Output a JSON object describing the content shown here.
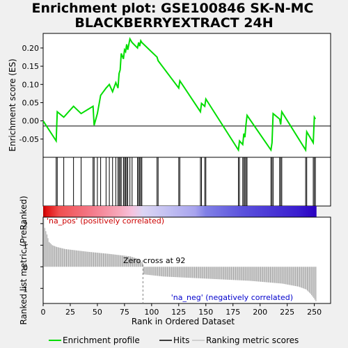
{
  "title_line1": "Enrichment plot: GSE100846 SK-N-MC",
  "title_line2": "BLACKBERRYEXTRACT 24H",
  "colors": {
    "enrichment_line": "#00dd00",
    "hits": "#000000",
    "ranking_bars": "#a0a0a0",
    "pos_label": "#cc0000",
    "neg_label": "#0000cc",
    "zero_cross_line": "#808080",
    "plot_bg": "#ffffff"
  },
  "chart_data": [
    {
      "type": "line",
      "name": "enrichment-profile",
      "ylabel": "Enrichment score (ES)",
      "xlim": [
        0,
        265
      ],
      "ylim": [
        -0.1,
        0.24
      ],
      "yticks": [
        -0.05,
        0.0,
        0.05,
        0.1,
        0.15,
        0.2
      ],
      "ytick_labels": [
        "-0.05",
        "0.00",
        "0.05",
        "0.10",
        "0.15",
        "0.20"
      ],
      "x": [
        0,
        12,
        13,
        19,
        28,
        35,
        46,
        47,
        50,
        53,
        58,
        61,
        64,
        67,
        69,
        70,
        71,
        72,
        74,
        75,
        76,
        77,
        78,
        80,
        82,
        87,
        88,
        89,
        90,
        91,
        105,
        106,
        125,
        126,
        145,
        146,
        149,
        150,
        180,
        181,
        184,
        185,
        186,
        187,
        188,
        210,
        211,
        212,
        218,
        219,
        220,
        242,
        243,
        249,
        250,
        251
      ],
      "y": [
        0.0,
        -0.055,
        0.025,
        0.01,
        0.04,
        0.02,
        0.04,
        -0.012,
        0.02,
        0.07,
        0.09,
        0.1,
        0.08,
        0.105,
        0.09,
        0.13,
        0.14,
        0.185,
        0.17,
        0.195,
        0.19,
        0.21,
        0.195,
        0.225,
        0.215,
        0.2,
        0.215,
        0.205,
        0.22,
        0.215,
        0.175,
        0.165,
        0.09,
        0.11,
        0.025,
        0.048,
        0.04,
        0.06,
        -0.08,
        -0.055,
        -0.065,
        -0.035,
        -0.045,
        -0.01,
        0.015,
        -0.08,
        -0.06,
        0.02,
        0.005,
        -0.01,
        0.025,
        -0.08,
        -0.03,
        -0.06,
        0.01,
        0.005
      ]
    },
    {
      "type": "hits",
      "name": "hits",
      "x": [
        12,
        13,
        19,
        28,
        35,
        46,
        47,
        50,
        53,
        58,
        61,
        64,
        67,
        69,
        70,
        71,
        72,
        74,
        75,
        76,
        77,
        78,
        80,
        82,
        87,
        88,
        89,
        90,
        91,
        105,
        106,
        125,
        126,
        145,
        146,
        149,
        150,
        180,
        181,
        184,
        185,
        186,
        187,
        188,
        210,
        211,
        212,
        218,
        219,
        220,
        242,
        243,
        249,
        250,
        251
      ]
    },
    {
      "type": "heatmap",
      "name": "rank-color-bar",
      "stops": [
        {
          "at": 0,
          "color": "#b80000"
        },
        {
          "at": 3,
          "color": "#e01010"
        },
        {
          "at": 15,
          "color": "#f05050"
        },
        {
          "at": 45,
          "color": "#f47a8a"
        },
        {
          "at": 70,
          "color": "#f7a8bb"
        },
        {
          "at": 82,
          "color": "#f6c2de"
        },
        {
          "at": 92,
          "color": "#dcd6f4"
        },
        {
          "at": 115,
          "color": "#c2c0f2"
        },
        {
          "at": 140,
          "color": "#a8a4ee"
        },
        {
          "at": 150,
          "color": "#8080e6"
        },
        {
          "at": 185,
          "color": "#5a50dc"
        },
        {
          "at": 235,
          "color": "#3a1ecf"
        },
        {
          "at": 252,
          "color": "#2a00c0"
        }
      ]
    },
    {
      "type": "bar",
      "name": "ranked-list-metric",
      "ylabel": "Ranked list metric (PreRanked)",
      "xlabel": "Rank in Ordered Dataset",
      "xlim": [
        0,
        265
      ],
      "ylim": [
        -1.7,
        2.3
      ],
      "yticks": [
        -1,
        0,
        1,
        2
      ],
      "ytick_labels": [
        "-1",
        "0",
        "1",
        "2"
      ],
      "xticks": [
        0,
        25,
        50,
        75,
        100,
        125,
        150,
        175,
        200,
        225,
        250
      ],
      "xtick_labels": [
        "0",
        "25",
        "50",
        "75",
        "100",
        "125",
        "150",
        "175",
        "200",
        "225",
        "250"
      ],
      "n": 252,
      "profile": [
        [
          0,
          2.2
        ],
        [
          1,
          1.8
        ],
        [
          3,
          1.5
        ],
        [
          5,
          1.15
        ],
        [
          8,
          1.0
        ],
        [
          12,
          0.92
        ],
        [
          20,
          0.82
        ],
        [
          40,
          0.7
        ],
        [
          60,
          0.6
        ],
        [
          80,
          0.48
        ],
        [
          88,
          0.35
        ],
        [
          91,
          0.18
        ],
        [
          92,
          -0.35
        ],
        [
          110,
          -0.45
        ],
        [
          150,
          -0.55
        ],
        [
          190,
          -0.65
        ],
        [
          220,
          -0.78
        ],
        [
          235,
          -0.92
        ],
        [
          242,
          -1.05
        ],
        [
          246,
          -1.25
        ],
        [
          249,
          -1.45
        ],
        [
          251,
          -1.6
        ]
      ],
      "zero_cross": 92
    }
  ],
  "annotations": {
    "pos": "'na_pos' (positively correlated)",
    "neg": "'na_neg' (negatively correlated)",
    "zero_cross": "Zero cross at 92"
  },
  "legend": {
    "items": [
      {
        "label": "Enrichment profile",
        "style": "green-line"
      },
      {
        "label": "Hits",
        "style": "black-line"
      },
      {
        "label": "Ranking metric scores",
        "style": "gray-line"
      }
    ]
  }
}
